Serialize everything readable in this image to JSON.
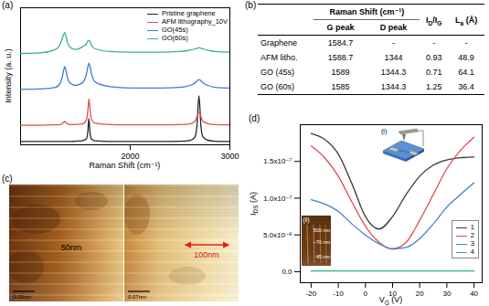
{
  "chart_data": [
    {
      "panel_label": "(a)",
      "type": "line",
      "x_label": [
        {
          "text": "Raman Shift (cm⁻¹)"
        }
      ],
      "y_label": [
        {
          "text": "Intensity (a. u.)"
        }
      ],
      "x": [
        900,
        1100,
        1250,
        1300,
        1320,
        1335,
        1344,
        1355,
        1370,
        1400,
        1450,
        1520,
        1560,
        1575,
        1585,
        1597,
        1610,
        1650,
        1800,
        2000,
        2300,
        2500,
        2600,
        2650,
        2670,
        2690,
        2710,
        2730,
        2780,
        2850,
        3000
      ],
      "series": [
        {
          "name": "Pristine graphene",
          "color": "#222222",
          "values": [
            5,
            5,
            5,
            5,
            5,
            5,
            5,
            5,
            5,
            5,
            5.5,
            6,
            9,
            20,
            40,
            18,
            9,
            6,
            5,
            5,
            5,
            5.5,
            6.5,
            12,
            30,
            75,
            28,
            12,
            7,
            5.5,
            5
          ]
        },
        {
          "name": "AFM lithography_10V",
          "color": "#d9534f",
          "values": [
            30,
            30,
            30.5,
            31,
            32.5,
            35,
            36,
            34,
            32,
            31,
            31,
            32,
            38,
            52,
            70,
            55,
            40,
            33,
            31,
            30.5,
            30.5,
            31,
            32,
            36,
            43,
            50,
            43,
            36,
            32.5,
            31,
            30.5
          ]
        },
        {
          "name": "GO(45s)",
          "color": "#3b7dd8",
          "values": [
            85,
            85.5,
            88,
            95,
            105,
            116,
            120,
            114,
            103,
            94,
            91,
            95,
            108,
            119,
            125,
            120,
            110,
            96,
            89,
            87,
            87,
            88,
            91,
            95,
            98,
            100,
            98,
            95,
            91,
            88,
            87
          ]
        },
        {
          "name": "GO(60s)",
          "color": "#3cb371",
          "values": [
            140,
            141,
            146,
            155,
            164,
            170,
            172,
            167,
            157,
            149,
            146,
            150,
            155,
            159,
            160,
            158,
            153,
            147,
            143,
            142,
            142,
            143,
            145,
            147,
            148,
            149,
            148,
            147,
            145,
            143,
            142
          ]
        }
      ],
      "xlim": [
        900,
        3000
      ],
      "xticks": [
        2000,
        3000
      ],
      "ylim": [
        0,
        210
      ],
      "yticks": [],
      "tick_labels": "x",
      "legend": "top-right"
    },
    {
      "panel_label": "(d)",
      "type": "line",
      "x_label": [
        {
          "text": "V",
          "sub": "G"
        },
        {
          "text": " (V)"
        }
      ],
      "y_label": [
        {
          "text": "I",
          "sub": "DS"
        },
        {
          "text": " (A)"
        }
      ],
      "x": [
        -20,
        -15,
        -10,
        -5,
        0,
        5,
        10,
        15,
        20,
        25,
        30,
        35,
        40
      ],
      "series": [
        {
          "name": "1",
          "color": "#3a3a3a",
          "values": [
            1.88e-07,
            1.8e-07,
            1.6e-07,
            1.2e-07,
            7.5e-08,
            5.8e-08,
            7.5e-08,
            1.05e-07,
            1.3e-07,
            1.45e-07,
            1.52e-07,
            1.55e-07,
            1.56e-07
          ]
        },
        {
          "name": "2",
          "color": "#e0484e",
          "values": [
            1.71e-07,
            1.55e-07,
            1.3e-07,
            9.5e-08,
            6.2e-08,
            4e-08,
            3.1e-08,
            4e-08,
            7e-08,
            1.05e-07,
            1.4e-07,
            1.65e-07,
            1.83e-07
          ]
        },
        {
          "name": "3",
          "color": "#3f7fd8",
          "values": [
            9.8e-08,
            9.2e-08,
            8.2e-08,
            6.5e-08,
            5e-08,
            3.8e-08,
            3.1e-08,
            3.3e-08,
            4.5e-08,
            6.5e-08,
            8.8e-08,
            1.05e-07,
            1.21e-07
          ]
        },
        {
          "name": "4",
          "color": "#2fae8a",
          "values": [
            1e-09,
            1e-09,
            1e-09,
            1e-09,
            1e-09,
            1e-09,
            1e-09,
            1e-09,
            1e-09,
            1e-09,
            1e-09,
            1e-09,
            1e-09
          ]
        }
      ],
      "xlim": [
        -24,
        43
      ],
      "xticks": [
        -20,
        -10,
        0,
        10,
        20,
        30,
        40
      ],
      "ylim": [
        -1.5e-08,
        2e-07
      ],
      "yticks": [
        {
          "value": 0,
          "label": "0.0"
        },
        {
          "value": 5e-08,
          "label": "5.0x10⁻⁸"
        },
        {
          "value": 1e-07,
          "label": "1.0x10⁻⁷"
        },
        {
          "value": 1.5e-07,
          "label": "1.5x10⁻⁷"
        }
      ],
      "tick_labels": true,
      "legend": "bottom-right",
      "inset_i": {
        "label": "(i)"
      },
      "inset_ii": {
        "label": "(ii)",
        "texts": [
          "500 nm",
          "~70 nm",
          "45 nm"
        ]
      }
    }
  ],
  "table": {
    "panel_label": "(b)",
    "group_header": "Raman Shift (cm⁻¹)",
    "group_columns": [
      "G peak",
      "D peak"
    ],
    "other_columns": [
      [
        {
          "text": "I",
          "sub": "D"
        },
        {
          "text": "/I",
          "sub": "G"
        }
      ],
      [
        {
          "text": "L",
          "sub": "a"
        },
        {
          "text": " (Å)"
        }
      ]
    ],
    "rows": [
      [
        "Graphene",
        "1584.7",
        "-",
        "-",
        "-"
      ],
      [
        "AFM litho.",
        "1588.7",
        "1344",
        "0.93",
        "48.9"
      ],
      [
        "GO (45s)",
        "1589",
        "1344.3",
        "0.71",
        "64.1"
      ],
      [
        "GO (60s)",
        "1585",
        "1344.3",
        "1.25",
        "36.4"
      ]
    ]
  },
  "image": {
    "panel_label": "(c)",
    "left_text": {
      "text": "50nm",
      "color": "#000000"
    },
    "right_text": {
      "text": "100nm",
      "color": "#e02020"
    },
    "scale_bars": [
      "0.09nm",
      "0.07nm"
    ]
  }
}
